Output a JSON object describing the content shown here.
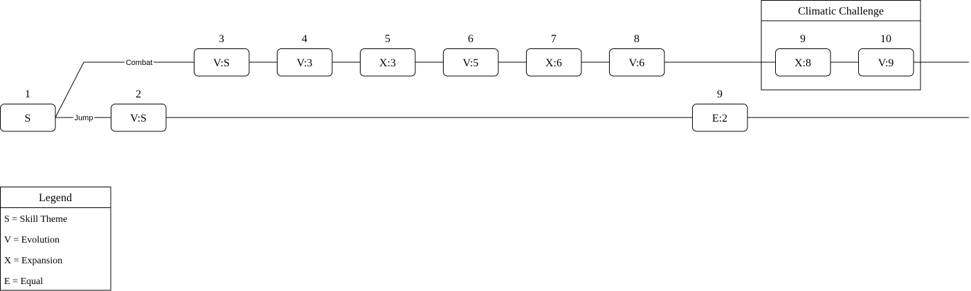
{
  "start_node": {
    "label": "S",
    "number": "1"
  },
  "branches": [
    {
      "label": "Combat",
      "nodes": [
        {
          "label": "V:S",
          "number": "3"
        },
        {
          "label": "V:3",
          "number": "4"
        },
        {
          "label": "X:3",
          "number": "5"
        },
        {
          "label": "V:5",
          "number": "6"
        },
        {
          "label": "X:6",
          "number": "7"
        },
        {
          "label": "V:6",
          "number": "8"
        },
        {
          "label": "X:8",
          "number": "9"
        },
        {
          "label": "V:9",
          "number": "10"
        }
      ]
    },
    {
      "label": "Jump",
      "nodes": [
        {
          "label": "V:S",
          "number": "2"
        },
        {
          "label": "E:2",
          "number": "9"
        }
      ]
    }
  ],
  "group": {
    "title": "Climatic Challenge"
  },
  "legend": {
    "title": "Legend",
    "items": [
      "S = Skill Theme",
      "V = Evolution",
      "X = Expansion",
      "E = Equal"
    ]
  }
}
